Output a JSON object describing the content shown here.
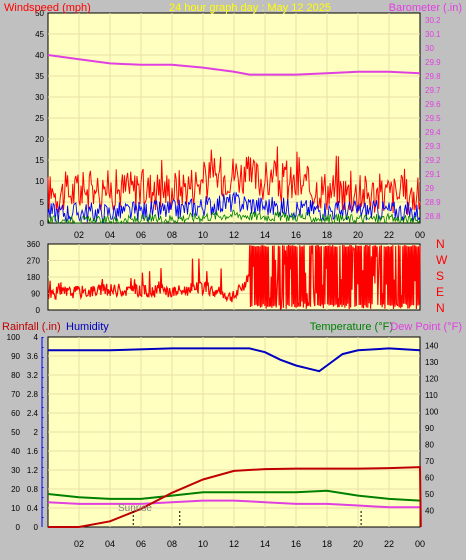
{
  "header": {
    "windspeed_label": "Windspeed (mph)",
    "title": "24 hour graph day : May 12 2025",
    "barometer_label": "Barometer (.in)"
  },
  "direction_labels": [
    "N",
    "W",
    "S",
    "E",
    "N"
  ],
  "lower_header": {
    "rainfall_label": "Rainfall (.in)",
    "humidity_label": "Humidity",
    "temperature_label": "Temperature (°F)",
    "dewpoint_label": "Dew Point (°F)"
  },
  "sunrise_label": "Sunrise",
  "colors": {
    "plot_bg": "#ffffc0",
    "frame_bg": "#c0c0c0",
    "wind_gust": "#ff0000",
    "wind_avg": "#0000ff",
    "wind_low": "#008000",
    "barometer": "#e040e0",
    "direction": "#ff0000",
    "rain": "#c00000",
    "humidity": "#0000c0",
    "temperature": "#008000",
    "dewpoint": "#e040e0",
    "title": "#ffff00"
  },
  "chart_data": [
    {
      "type": "line",
      "name": "wind-barometer",
      "x_ticks": [
        "02",
        "04",
        "06",
        "08",
        "10",
        "12",
        "14",
        "16",
        "18",
        "20",
        "22",
        "00"
      ],
      "left_axis": {
        "label": "Windspeed (mph)",
        "ticks": [
          "0",
          "5",
          "10",
          "15",
          "20",
          "25",
          "30",
          "35",
          "40",
          "45",
          "50"
        ],
        "range": [
          0,
          50
        ]
      },
      "right_axis": {
        "label": "Barometer (.in)",
        "ticks": [
          "28.8",
          "28.9",
          "29",
          "29.1",
          "29.2",
          "29.3",
          "29.4",
          "29.5",
          "29.6",
          "29.7",
          "29.8",
          "29.9",
          "30",
          "30.1",
          "30.2"
        ],
        "range": [
          28.75,
          30.25
        ]
      },
      "series": [
        {
          "key": "barometer",
          "x": [
            0,
            2,
            4,
            6,
            8,
            10,
            12,
            13,
            14,
            16,
            18,
            20,
            22,
            24
          ],
          "y": [
            29.95,
            29.92,
            29.89,
            29.88,
            29.88,
            29.86,
            29.83,
            29.81,
            29.81,
            29.81,
            29.82,
            29.83,
            29.83,
            29.82
          ]
        },
        {
          "key": "wind_gust",
          "x": [
            0,
            4,
            8,
            10,
            12,
            14,
            16,
            18,
            20,
            22,
            24
          ],
          "y": [
            7,
            8,
            8,
            10,
            12,
            10,
            9,
            8,
            7,
            7,
            6
          ]
        },
        {
          "key": "wind_avg",
          "x": [
            0,
            4,
            8,
            10,
            12,
            14,
            16,
            18,
            20,
            22,
            24
          ],
          "y": [
            2.5,
            2.5,
            3,
            4,
            5,
            4,
            3.5,
            3,
            3,
            3,
            2.5
          ]
        },
        {
          "key": "wind_low",
          "x": [
            0,
            4,
            8,
            10,
            12,
            14,
            16,
            18,
            20,
            22,
            24
          ],
          "y": [
            0.5,
            0.5,
            1,
            1.5,
            2,
            1.5,
            1.5,
            1,
            1,
            1,
            0.5
          ]
        }
      ]
    },
    {
      "type": "line",
      "name": "wind-direction",
      "x_ticks": [
        "02",
        "04",
        "06",
        "08",
        "10",
        "12",
        "14",
        "16",
        "18",
        "20",
        "22",
        "00"
      ],
      "left_axis": {
        "ticks": [
          "0",
          "90",
          "180",
          "270",
          "360"
        ],
        "range": [
          0,
          360
        ]
      },
      "series": [
        {
          "key": "direction",
          "x": [
            0,
            4,
            8,
            10,
            12,
            13,
            24
          ],
          "y": [
            90,
            110,
            100,
            120,
            70,
            180,
            180
          ]
        }
      ]
    },
    {
      "type": "line",
      "name": "rain-humidity-temperature",
      "x_ticks": [
        "02",
        "04",
        "06",
        "08",
        "10",
        "12",
        "14",
        "16",
        "18",
        "20",
        "22",
        "00"
      ],
      "left_axis": {
        "label": "Rainfall (.in)",
        "ticks": [
          "0",
          "0.4",
          "0.8",
          "1.2",
          "1.6",
          "2",
          "2.4",
          "2.8",
          "3.2",
          "3.6",
          "4"
        ],
        "range": [
          0,
          4
        ]
      },
      "left_axis_humidity": {
        "label": "Humidity",
        "ticks": [
          "0",
          "10",
          "20",
          "30",
          "40",
          "50",
          "60",
          "70",
          "80",
          "90",
          "100"
        ],
        "range": [
          0,
          100
        ]
      },
      "right_axis": {
        "label": "Temperature (°F)",
        "ticks": [
          "40",
          "50",
          "60",
          "70",
          "80",
          "90",
          "100",
          "110",
          "120",
          "130",
          "140"
        ],
        "range": [
          30,
          145
        ]
      },
      "series": [
        {
          "key": "humidity",
          "x": [
            0,
            4,
            8,
            10,
            12,
            13,
            14,
            15,
            16,
            17,
            17.5,
            18,
            19,
            20,
            22,
            24
          ],
          "y": [
            93,
            93,
            94,
            94,
            94,
            94,
            92,
            88,
            85,
            83,
            82,
            85,
            91,
            93,
            94,
            93
          ]
        },
        {
          "key": "rain",
          "x": [
            0,
            2,
            4,
            6,
            8,
            10,
            12,
            14,
            16,
            18,
            20,
            22,
            24,
            24.05
          ],
          "y": [
            0,
            0,
            0.12,
            0.38,
            0.72,
            1.0,
            1.18,
            1.22,
            1.23,
            1.23,
            1.23,
            1.24,
            1.26,
            0
          ]
        },
        {
          "key": "temperature",
          "x": [
            0,
            2,
            4,
            6,
            8,
            10,
            12,
            14,
            16,
            18,
            20,
            22,
            24
          ],
          "y": [
            50,
            48,
            47,
            47,
            49,
            51,
            51,
            51,
            51,
            52,
            49,
            47,
            46
          ]
        },
        {
          "key": "dewpoint",
          "x": [
            0,
            2,
            4,
            6,
            8,
            10,
            12,
            14,
            16,
            18,
            20,
            22,
            24
          ],
          "y": [
            45,
            44,
            44,
            44,
            45,
            46,
            46,
            45,
            44,
            44,
            43,
            42,
            42
          ]
        }
      ]
    }
  ]
}
